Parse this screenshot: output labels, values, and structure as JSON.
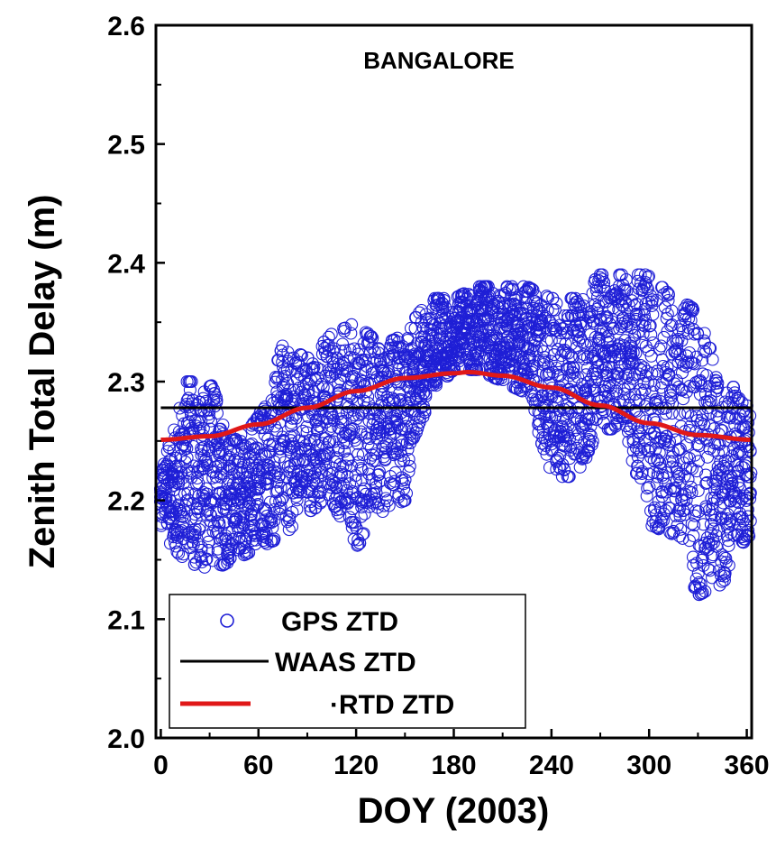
{
  "chart_data": {
    "type": "scatter",
    "annotation": "BANGALORE",
    "xlabel": "DOY (2003)",
    "ylabel": "Zenith Total Delay (m)",
    "xlim": [
      -3,
      363
    ],
    "ylim": [
      2.0,
      2.6
    ],
    "xticks": [
      "0",
      "60",
      "120",
      "180",
      "240",
      "300",
      "360"
    ],
    "yticks": [
      "2.0",
      "2.1",
      "2.2",
      "2.3",
      "2.4",
      "2.5",
      "2.6"
    ],
    "grid": false,
    "legend_position": "bottom-left",
    "colors": {
      "gps": "#1f1fd6",
      "waas": "#000000",
      "rtd": "#e01818"
    },
    "series": [
      {
        "name": "GPS ZTD",
        "kind": "scatter",
        "envelope_doy": [
          0,
          15,
          30,
          45,
          60,
          75,
          90,
          105,
          120,
          135,
          150,
          165,
          180,
          195,
          210,
          225,
          240,
          255,
          270,
          285,
          300,
          315,
          330,
          345,
          360
        ],
        "envelope_min": [
          2.17,
          2.15,
          2.14,
          2.15,
          2.16,
          2.17,
          2.19,
          2.2,
          2.16,
          2.19,
          2.2,
          2.29,
          2.31,
          2.31,
          2.3,
          2.29,
          2.22,
          2.22,
          2.26,
          2.26,
          2.18,
          2.17,
          2.12,
          2.13,
          2.17
        ],
        "envelope_max": [
          2.22,
          2.3,
          2.3,
          2.25,
          2.27,
          2.33,
          2.32,
          2.34,
          2.35,
          2.33,
          2.34,
          2.37,
          2.37,
          2.38,
          2.38,
          2.38,
          2.37,
          2.37,
          2.39,
          2.39,
          2.39,
          2.37,
          2.36,
          2.3,
          2.29
        ]
      },
      {
        "name": "WAAS ZTD",
        "kind": "line",
        "x": [
          0,
          363
        ],
        "y": [
          2.278,
          2.278
        ]
      },
      {
        "name": "·RTD ZTD",
        "kind": "line",
        "x": [
          0,
          30,
          60,
          90,
          120,
          150,
          180,
          189,
          210,
          240,
          270,
          300,
          330,
          363
        ],
        "y": [
          2.251,
          2.254,
          2.264,
          2.278,
          2.292,
          2.303,
          2.307,
          2.308,
          2.305,
          2.295,
          2.28,
          2.265,
          2.255,
          2.251
        ]
      }
    ]
  }
}
